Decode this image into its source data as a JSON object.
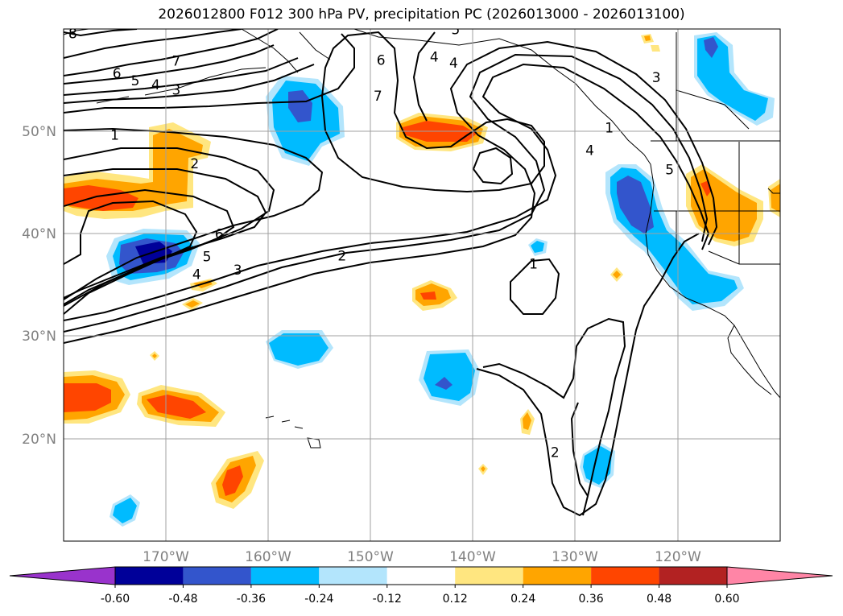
{
  "title": "2026012800 F012 300 hPa PV, precipitation PC (2026013000 - 2026013100)",
  "map": {
    "lon_range": [
      -180,
      -110
    ],
    "lat_range": [
      10,
      60
    ],
    "lat_ticks": [
      "50°N",
      "40°N",
      "30°N",
      "20°N"
    ],
    "lon_ticks": [
      "170°W",
      "160°W",
      "150°W",
      "140°W",
      "130°W",
      "120°W"
    ],
    "colors": {
      "coast": "#000000",
      "grid": "#a0a0a0",
      "contour": "#000000"
    }
  },
  "pv_contour_labels": [
    {
      "text": "8",
      "lon": -179.1,
      "lat": 59.5
    },
    {
      "text": "7",
      "lon": -169.0,
      "lat": 56.8
    },
    {
      "text": "6",
      "lon": -174.8,
      "lat": 55.6
    },
    {
      "text": "5",
      "lon": -173.0,
      "lat": 54.9
    },
    {
      "text": "4",
      "lon": -171.0,
      "lat": 54.5
    },
    {
      "text": "3",
      "lon": -169.0,
      "lat": 54.0
    },
    {
      "text": "1",
      "lon": -175.0,
      "lat": 49.6
    },
    {
      "text": "2",
      "lon": -167.2,
      "lat": 46.8
    },
    {
      "text": "6",
      "lon": -164.8,
      "lat": 39.9
    },
    {
      "text": "5",
      "lon": -166.0,
      "lat": 37.7
    },
    {
      "text": "4",
      "lon": -167.0,
      "lat": 36.0
    },
    {
      "text": "3",
      "lon": -163.0,
      "lat": 36.4
    },
    {
      "text": "2",
      "lon": -152.8,
      "lat": 37.8
    },
    {
      "text": "6",
      "lon": -149.0,
      "lat": 56.9
    },
    {
      "text": "7",
      "lon": -149.3,
      "lat": 53.4
    },
    {
      "text": "5",
      "lon": -141.7,
      "lat": 59.9
    },
    {
      "text": "4",
      "lon": -143.8,
      "lat": 57.2
    },
    {
      "text": "4",
      "lon": -141.9,
      "lat": 56.6
    },
    {
      "text": "3",
      "lon": -122.1,
      "lat": 55.2
    },
    {
      "text": "1",
      "lon": -126.7,
      "lat": 50.3
    },
    {
      "text": "4",
      "lon": -128.6,
      "lat": 48.1
    },
    {
      "text": "1",
      "lon": -134.1,
      "lat": 37.0
    },
    {
      "text": "2",
      "lon": -132.0,
      "lat": 18.6
    },
    {
      "text": "5",
      "lon": -120.8,
      "lat": 46.2
    }
  ],
  "colorbar": {
    "thresholds": [
      "-0.60",
      "-0.48",
      "-0.36",
      "-0.24",
      "-0.12",
      "0.12",
      "0.24",
      "0.36",
      "0.48",
      "0.60"
    ],
    "colors": [
      "#9933cc",
      "#000099",
      "#3355cc",
      "#00bbff",
      "#b3e5fc",
      "#ffffff",
      "#ffe680",
      "#ffa500",
      "#ff4500",
      "#b22222",
      "#ff85a6"
    ]
  }
}
